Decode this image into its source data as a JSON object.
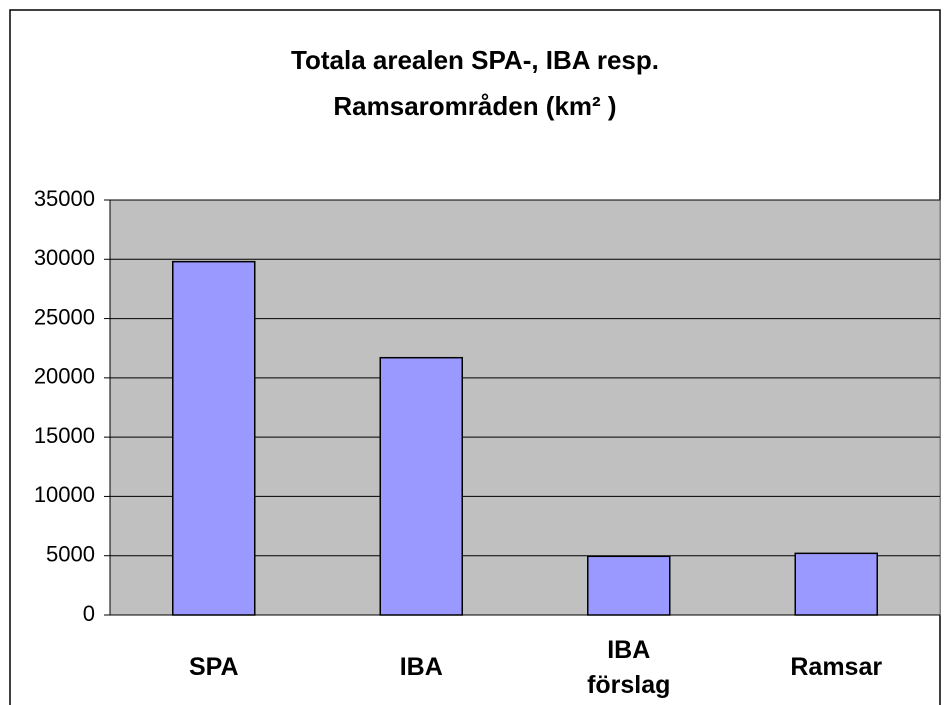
{
  "chart_data": {
    "type": "bar",
    "title": [
      "Totala arealen SPA-, IBA resp.",
      "Ramsarområden (km² )"
    ],
    "categories": [
      "SPA",
      "IBA",
      "IBA förslag",
      "Ramsar"
    ],
    "values": [
      29800,
      21700,
      4950,
      5200
    ],
    "color": "#9999ff",
    "ylim": [
      0,
      35000
    ],
    "yticks": [
      0,
      5000,
      10000,
      15000,
      20000,
      25000,
      30000,
      35000
    ],
    "grid": true
  }
}
